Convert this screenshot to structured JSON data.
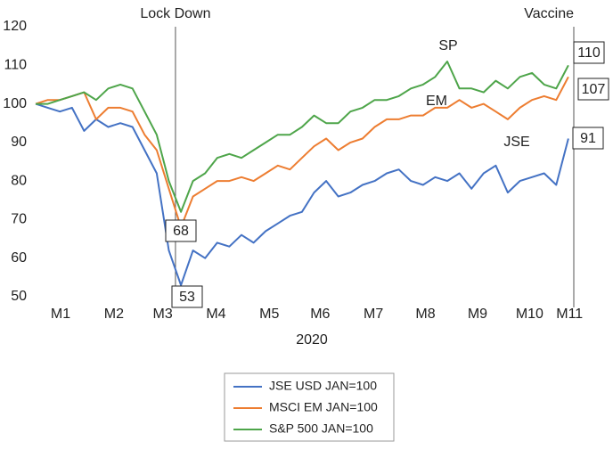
{
  "chart_data": {
    "type": "line",
    "grid": false,
    "x_label": "2020",
    "x": [
      0,
      1,
      2,
      3,
      4,
      5,
      6,
      7,
      8,
      9,
      10,
      11,
      12,
      13,
      14,
      15,
      16,
      17,
      18,
      19,
      20,
      21,
      22,
      23,
      24,
      25,
      26,
      27,
      28,
      29,
      30,
      31,
      32,
      33,
      34,
      35,
      36,
      37,
      38,
      39,
      40,
      41,
      42,
      43,
      44
    ],
    "xlim": [
      0,
      44.45
    ],
    "xticks": [
      {
        "value": 2.06,
        "label": "M1"
      },
      {
        "value": 6.47,
        "label": "M2"
      },
      {
        "value": 10.5,
        "label": "M3"
      },
      {
        "value": 14.9,
        "label": "M4"
      },
      {
        "value": 19.3,
        "label": "M5"
      },
      {
        "value": 23.5,
        "label": "M6"
      },
      {
        "value": 27.9,
        "label": "M7"
      },
      {
        "value": 32.2,
        "label": "M8"
      },
      {
        "value": 36.5,
        "label": "M9"
      },
      {
        "value": 40.8,
        "label": "M10"
      },
      {
        "value": 44.1,
        "label": "M11"
      }
    ],
    "ylim": [
      50,
      120
    ],
    "yticks": [
      50,
      60,
      70,
      80,
      90,
      100,
      110,
      120
    ],
    "legend": "bottom",
    "series": [
      {
        "name": "JSE USD JAN=100",
        "color": "#4472c4",
        "values": [
          100,
          99,
          98,
          99,
          93,
          96,
          94,
          95,
          94,
          88,
          82,
          62,
          53,
          62,
          60,
          64,
          63,
          66,
          64,
          67,
          69,
          71,
          72,
          77,
          80,
          76,
          77,
          79,
          80,
          82,
          83,
          80,
          79,
          81,
          80,
          82,
          78,
          82,
          84,
          77,
          80,
          81,
          82,
          79,
          91
        ]
      },
      {
        "name": "MSCI EM JAN=100",
        "color": "#ed7d31",
        "values": [
          100,
          101,
          101,
          102,
          103,
          96,
          99,
          99,
          98,
          92,
          88,
          78,
          68,
          76,
          78,
          80,
          80,
          81,
          80,
          82,
          84,
          83,
          86,
          89,
          91,
          88,
          90,
          91,
          94,
          96,
          96,
          97,
          97,
          99,
          99,
          101,
          99,
          100,
          98,
          96,
          99,
          101,
          102,
          101,
          107
        ]
      },
      {
        "name": "S&P 500 JAN=100",
        "color": "#4ea54a",
        "values": [
          100,
          100,
          101,
          102,
          103,
          101,
          104,
          105,
          104,
          98,
          92,
          80,
          72,
          80,
          82,
          86,
          87,
          86,
          88,
          90,
          92,
          92,
          94,
          97,
          95,
          95,
          98,
          99,
          101,
          101,
          102,
          104,
          105,
          107,
          111,
          104,
          104,
          103,
          106,
          104,
          107,
          108,
          105,
          104,
          110
        ]
      }
    ],
    "markers": [
      {
        "label": "Lock Down",
        "x": 11.55
      },
      {
        "label": "Vaccine",
        "x": 44.45
      }
    ],
    "series_labels": [
      "SP",
      "EM",
      "JSE"
    ],
    "callouts": [
      "110",
      "107",
      "91",
      "68",
      "53"
    ]
  }
}
